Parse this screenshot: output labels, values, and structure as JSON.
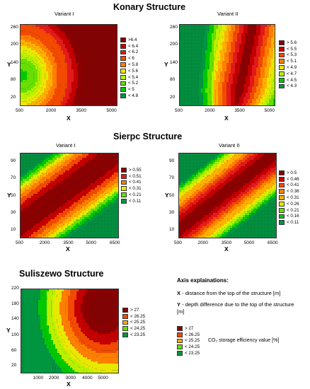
{
  "sections": [
    {
      "title": "Konary Structure"
    },
    {
      "title": "Sierpc Structure"
    },
    {
      "title": "Suliszewo Structure"
    }
  ],
  "explanations": {
    "title": "Axis explainations:",
    "x_key": "X",
    "x_text": "- distance from the top of the structure [m]",
    "y_key": "Y",
    "y_text": "- depth difference due to the top of the structure [m]",
    "efficiency_label": "CO₂ storage efficiency value [%]"
  },
  "colors": {
    "scale": [
      "#8b0000",
      "#c40000",
      "#e31a1c",
      "#f24a00",
      "#ff7f00",
      "#ffb000",
      "#e8e800",
      "#b8f000",
      "#66e000",
      "#00c800",
      "#009640"
    ]
  },
  "chart_data": [
    {
      "type": "heatmap",
      "title": "Variant I",
      "xlabel": "X",
      "ylabel": "Y",
      "xlim": [
        500,
        5500
      ],
      "ylim": [
        10,
        290
      ],
      "xticks": [
        "500",
        "2000",
        "3500",
        "5000"
      ],
      "yticks": [
        "20",
        "80",
        "140",
        "200",
        "260"
      ],
      "legend": [
        ">6.4",
        "< 6.4",
        "< 6.2",
        "< 6",
        "< 5.8",
        "< 5.6",
        "< 5.4",
        "< 5.2",
        "< 5",
        "< 4.8"
      ],
      "zlim": [
        4.7,
        6.5
      ]
    },
    {
      "type": "heatmap",
      "title": "Variant II",
      "xlabel": "X",
      "ylabel": "Y",
      "xlim": [
        500,
        5500
      ],
      "ylim": [
        10,
        290
      ],
      "xticks": [
        "500",
        "2000",
        "3500",
        "5000"
      ],
      "yticks": [
        "20",
        "80",
        "140",
        "200",
        "260"
      ],
      "legend": [
        "> 5.6",
        "< 5.5",
        "< 5.3",
        "< 5.1",
        "< 4.9",
        "< 4.7",
        "< 4.5",
        "< 4.3"
      ],
      "zlim": [
        4.2,
        5.7
      ]
    },
    {
      "type": "heatmap",
      "title": "Variant I",
      "xlabel": "X",
      "ylabel": "Y",
      "xlim": [
        500,
        6800
      ],
      "ylim": [
        0,
        100
      ],
      "xticks": [
        "500",
        "2000",
        "3500",
        "5000",
        "6500"
      ],
      "yticks": [
        "10",
        "30",
        "50",
        "70",
        "90"
      ],
      "legend": [
        "> 0.55",
        "< 0.51",
        "< 0.41",
        "< 0.31",
        "< 0.21",
        "< 0.11"
      ],
      "zlim": [
        0.05,
        0.6
      ]
    },
    {
      "type": "heatmap",
      "title": "Variant II",
      "xlabel": "X",
      "ylabel": "Y",
      "xlim": [
        500,
        6800
      ],
      "ylim": [
        0,
        100
      ],
      "xticks": [
        "500",
        "2000",
        "3500",
        "5000",
        "6500"
      ],
      "yticks": [
        "10",
        "30",
        "50",
        "70",
        "90"
      ],
      "legend": [
        "> 0.5",
        "< 0.46",
        "< 0.41",
        "< 0.36",
        "< 0.31",
        "< 0.26",
        "< 0.21",
        "< 0.16",
        "< 0.11"
      ],
      "zlim": [
        0.05,
        0.55
      ]
    },
    {
      "type": "heatmap",
      "title": "",
      "xlabel": "X",
      "ylabel": "Y",
      "xlim": [
        0,
        6000
      ],
      "ylim": [
        0,
        220
      ],
      "xticks": [
        "1000",
        "2000",
        "3000",
        "4000",
        "5000"
      ],
      "yticks": [
        "20",
        "60",
        "100",
        "140",
        "180",
        "220"
      ],
      "legend": [
        "> 27",
        "< 26.25",
        "< 25.25",
        "< 24.25",
        "< 23.25"
      ],
      "zlim": [
        23,
        27.5
      ]
    },
    {
      "type": "legend",
      "title": "",
      "legend": [
        "> 27",
        "< 26.25",
        "< 25.25",
        "< 24.25",
        "< 23.25"
      ]
    }
  ]
}
